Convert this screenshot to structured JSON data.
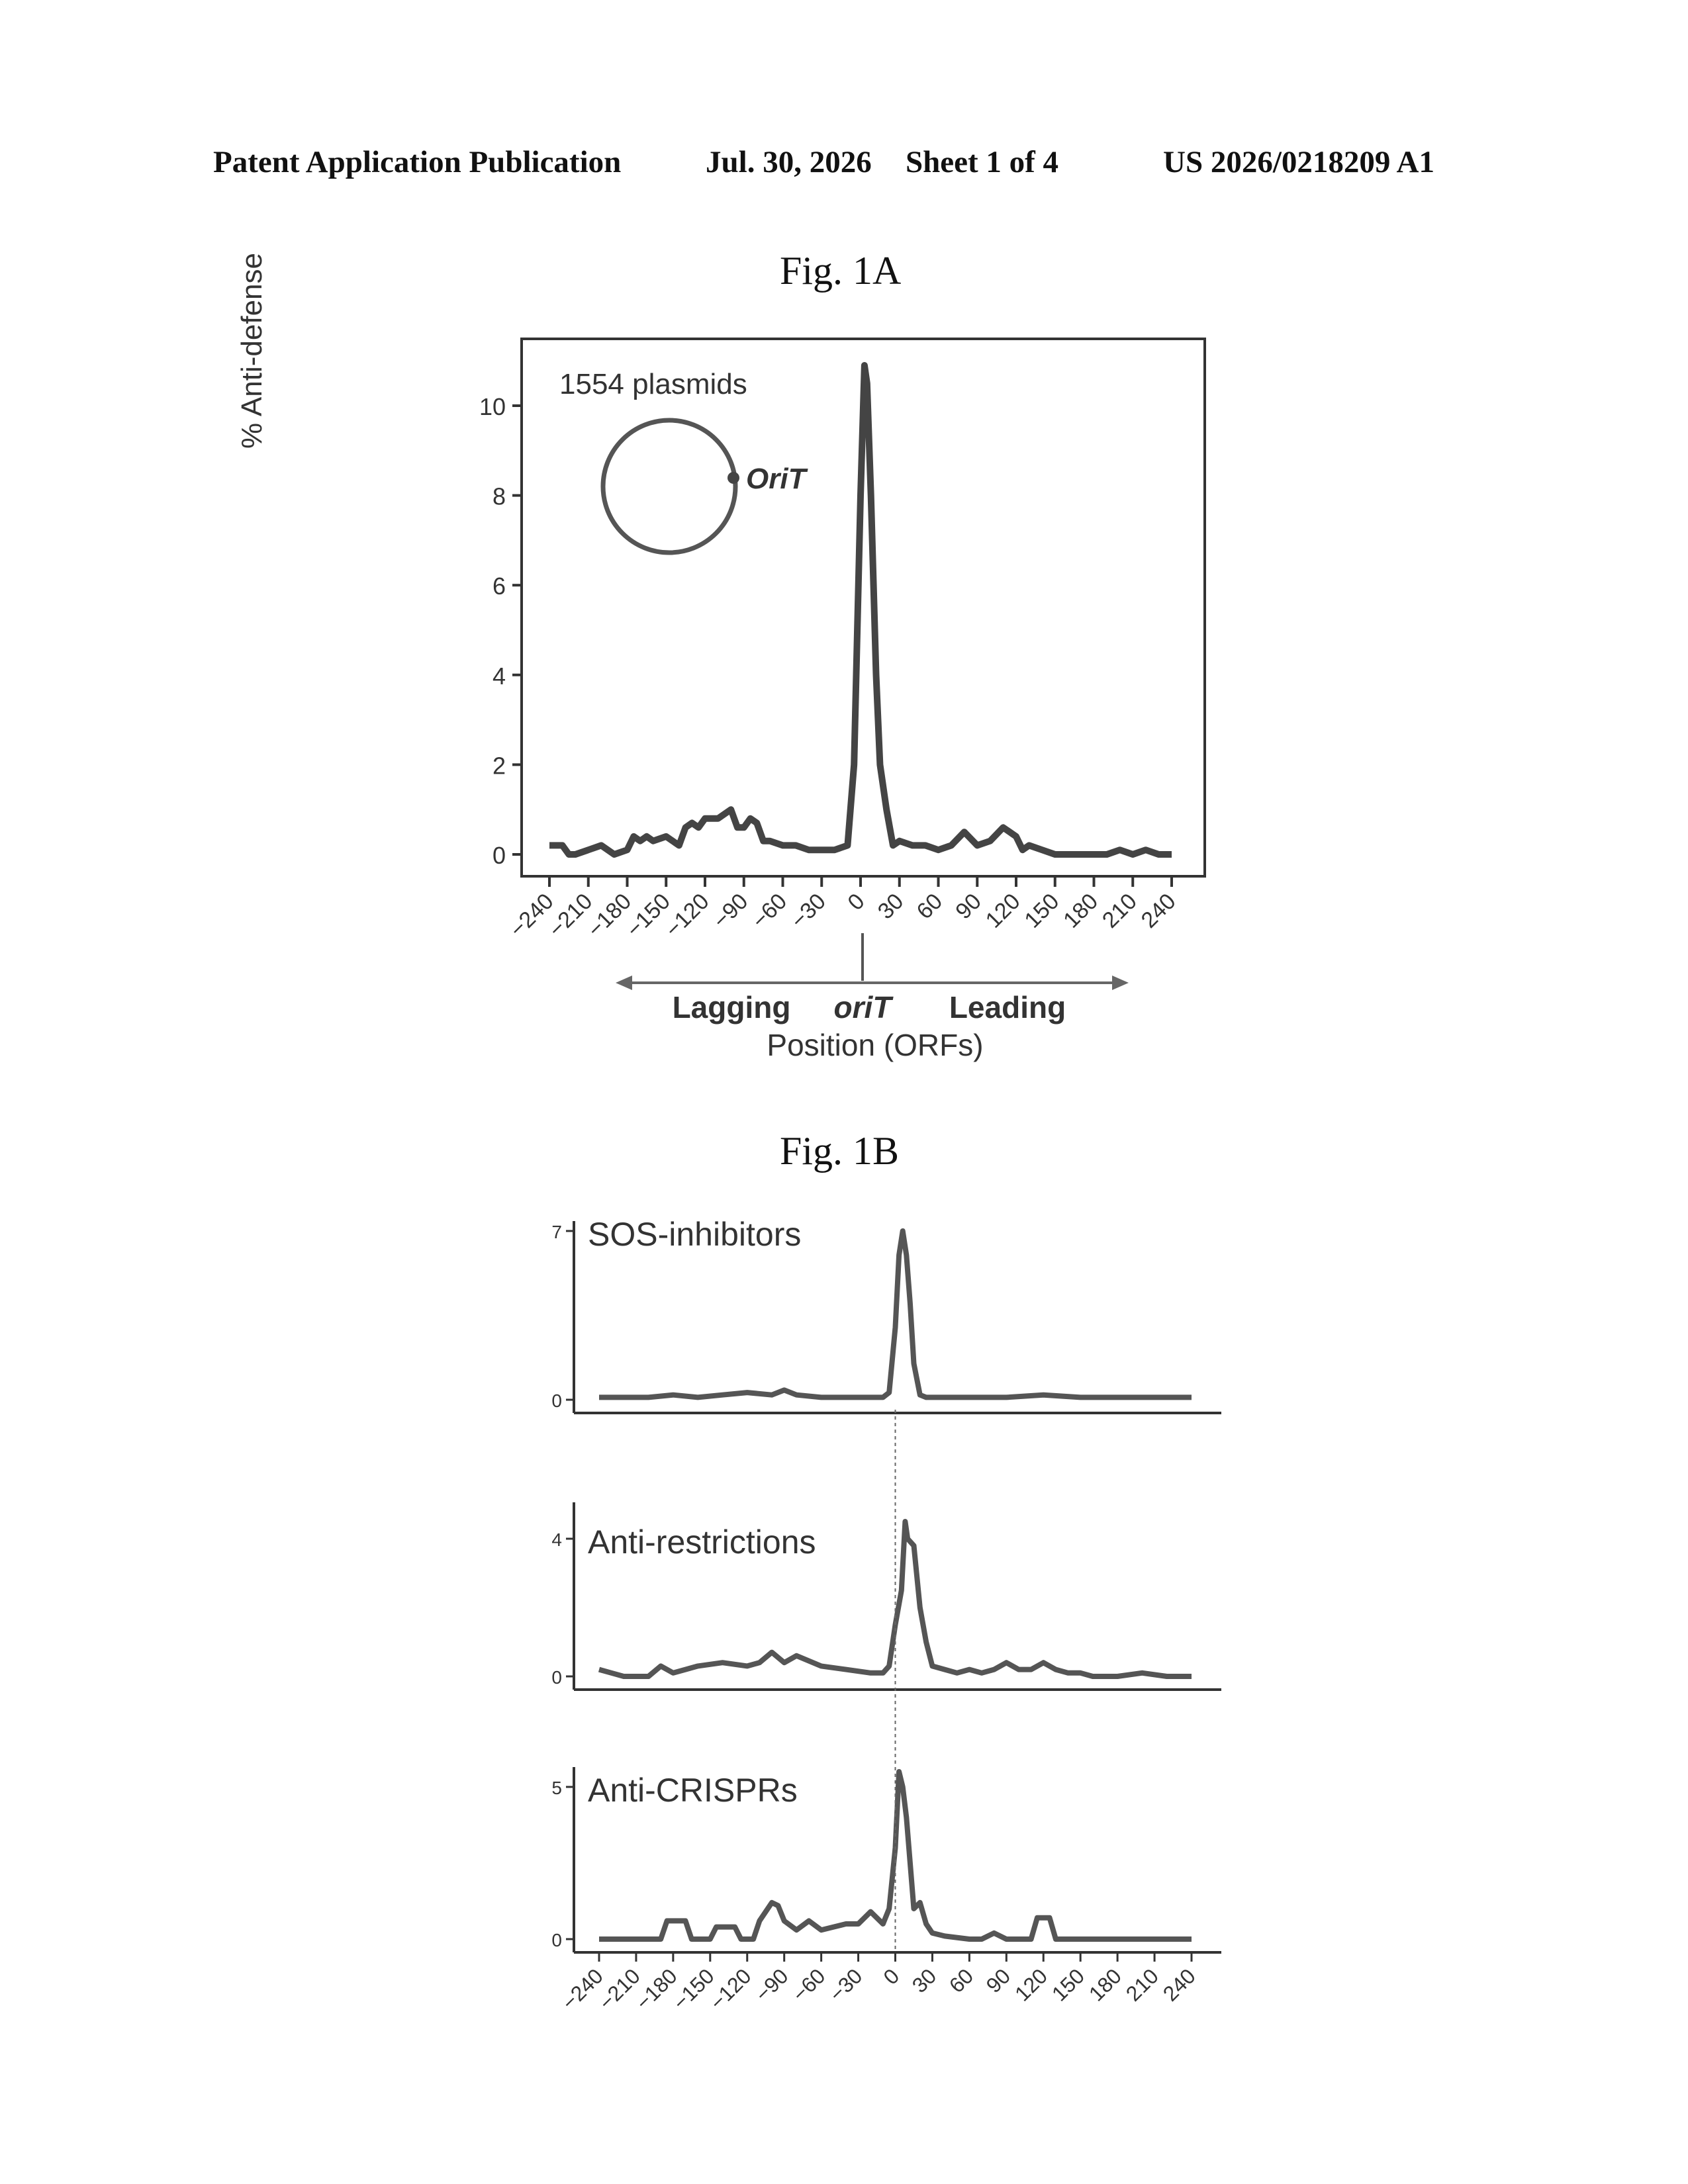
{
  "header": {
    "publication": "Patent Application Publication",
    "date": "Jul. 30, 2026",
    "sheet": "Sheet 1 of 4",
    "number": "US 2026/0218209 A1"
  },
  "figures": {
    "fig1a_title": "Fig. 1A",
    "fig1b_title": "Fig. 1B"
  },
  "fig1a": {
    "ylabel": "% Anti-defense",
    "annotation": "1554 plasmids",
    "orit_label": "OriT",
    "lagging_label": "Lagging",
    "oriT_label": "oriT",
    "leading_label": "Leading",
    "xlabel": "Position (ORFs)"
  },
  "chart_data": [
    {
      "type": "line",
      "title": "Fig. 1A",
      "xlabel": "Position (ORFs)",
      "ylabel": "% Anti-defense",
      "annotation": "1554 plasmids",
      "xlim": [
        -255,
        255
      ],
      "ylim": [
        -0.5,
        11.5
      ],
      "x_ticks": [
        -240,
        -210,
        -180,
        -150,
        -120,
        -90,
        -60,
        -30,
        0,
        30,
        60,
        90,
        120,
        150,
        180,
        210,
        240
      ],
      "y_ticks": [
        0,
        2,
        4,
        6,
        8,
        10
      ],
      "grid": false,
      "series": [
        {
          "x": [
            -240,
            -230,
            -225,
            -220,
            -210,
            -200,
            -190,
            -180,
            -175,
            -170,
            -165,
            -160,
            -150,
            -140,
            -135,
            -130,
            -125,
            -120,
            -110,
            -100,
            -95,
            -90,
            -85,
            -80,
            -75,
            -70,
            -60,
            -50,
            -40,
            -30,
            -20,
            -10,
            -5,
            0,
            3,
            5,
            8,
            10,
            12,
            15,
            20,
            25,
            30,
            40,
            50,
            60,
            70,
            80,
            90,
            100,
            110,
            120,
            125,
            130,
            140,
            150,
            160,
            170,
            180,
            190,
            200,
            210,
            220,
            230,
            240
          ],
          "y": [
            0.2,
            0.2,
            0.0,
            0.0,
            0.1,
            0.2,
            0.0,
            0.1,
            0.4,
            0.3,
            0.4,
            0.3,
            0.4,
            0.2,
            0.6,
            0.7,
            0.6,
            0.8,
            0.8,
            1.0,
            0.6,
            0.6,
            0.8,
            0.7,
            0.3,
            0.3,
            0.2,
            0.2,
            0.1,
            0.1,
            0.1,
            0.2,
            2.0,
            8.0,
            10.9,
            10.5,
            8.0,
            6.0,
            4.0,
            2.0,
            1.0,
            0.2,
            0.3,
            0.2,
            0.2,
            0.1,
            0.2,
            0.5,
            0.2,
            0.3,
            0.6,
            0.4,
            0.1,
            0.2,
            0.1,
            0.0,
            0.0,
            0.0,
            0.0,
            0.0,
            0.1,
            0.0,
            0.1,
            0.0,
            0.0
          ]
        }
      ]
    },
    {
      "type": "line",
      "title": "Fig. 1B",
      "xlim": [
        -255,
        255
      ],
      "x_ticks": [
        -240,
        -210,
        -180,
        -150,
        -120,
        -90,
        -60,
        -30,
        0,
        30,
        60,
        90,
        120,
        150,
        180,
        210,
        240
      ],
      "grid": false,
      "panels": [
        {
          "name": "SOS-inhibitors",
          "y_ticks": [
            0,
            7
          ],
          "ylim": [
            0,
            7
          ],
          "x": [
            -240,
            -200,
            -180,
            -160,
            -140,
            -120,
            -100,
            -90,
            -80,
            -60,
            -40,
            -20,
            -10,
            -5,
            0,
            3,
            6,
            9,
            12,
            15,
            20,
            25,
            30,
            60,
            90,
            120,
            150,
            180,
            210,
            240
          ],
          "y": [
            0.1,
            0.1,
            0.2,
            0.1,
            0.2,
            0.3,
            0.2,
            0.4,
            0.2,
            0.1,
            0.1,
            0.1,
            0.1,
            0.3,
            3.0,
            6.0,
            7.0,
            6.0,
            4.0,
            1.5,
            0.2,
            0.1,
            0.1,
            0.1,
            0.1,
            0.2,
            0.1,
            0.1,
            0.1,
            0.1
          ]
        },
        {
          "name": "Anti-restrictions",
          "y_ticks": [
            0,
            4
          ],
          "ylim": [
            0,
            4
          ],
          "x": [
            -240,
            -230,
            -220,
            -200,
            -190,
            -180,
            -170,
            -160,
            -140,
            -120,
            -110,
            -100,
            -90,
            -80,
            -60,
            -40,
            -20,
            -10,
            -5,
            0,
            5,
            8,
            10,
            15,
            20,
            25,
            30,
            40,
            50,
            60,
            70,
            80,
            90,
            100,
            110,
            120,
            130,
            140,
            150,
            160,
            180,
            200,
            220,
            240
          ],
          "y": [
            0.2,
            0.1,
            0.0,
            0.0,
            0.3,
            0.1,
            0.2,
            0.3,
            0.4,
            0.3,
            0.4,
            0.7,
            0.4,
            0.6,
            0.3,
            0.2,
            0.1,
            0.1,
            0.3,
            1.5,
            2.5,
            4.5,
            4.0,
            3.8,
            2.0,
            1.0,
            0.3,
            0.2,
            0.1,
            0.2,
            0.1,
            0.2,
            0.4,
            0.2,
            0.2,
            0.4,
            0.2,
            0.1,
            0.1,
            0.0,
            0.0,
            0.1,
            0.0,
            0.0
          ]
        },
        {
          "name": "Anti-CRISPRs",
          "y_ticks": [
            0,
            5
          ],
          "ylim": [
            0,
            5
          ],
          "x": [
            -240,
            -190,
            -185,
            -170,
            -165,
            -150,
            -145,
            -130,
            -125,
            -115,
            -110,
            -100,
            -95,
            -90,
            -80,
            -70,
            -60,
            -50,
            -40,
            -30,
            -20,
            -10,
            -5,
            0,
            3,
            6,
            9,
            12,
            15,
            20,
            25,
            30,
            40,
            60,
            70,
            80,
            90,
            110,
            115,
            125,
            130,
            150,
            200,
            240
          ],
          "y": [
            0.0,
            0.0,
            0.6,
            0.6,
            0.0,
            0.0,
            0.4,
            0.4,
            0.0,
            0.0,
            0.6,
            1.2,
            1.1,
            0.6,
            0.3,
            0.6,
            0.3,
            0.4,
            0.5,
            0.5,
            0.9,
            0.5,
            1.0,
            3.0,
            5.5,
            5.0,
            4.0,
            2.5,
            1.0,
            1.2,
            0.5,
            0.2,
            0.1,
            0.0,
            0.0,
            0.2,
            0.0,
            0.0,
            0.7,
            0.7,
            0.0,
            0.0,
            0.0,
            0.0
          ]
        }
      ]
    }
  ]
}
